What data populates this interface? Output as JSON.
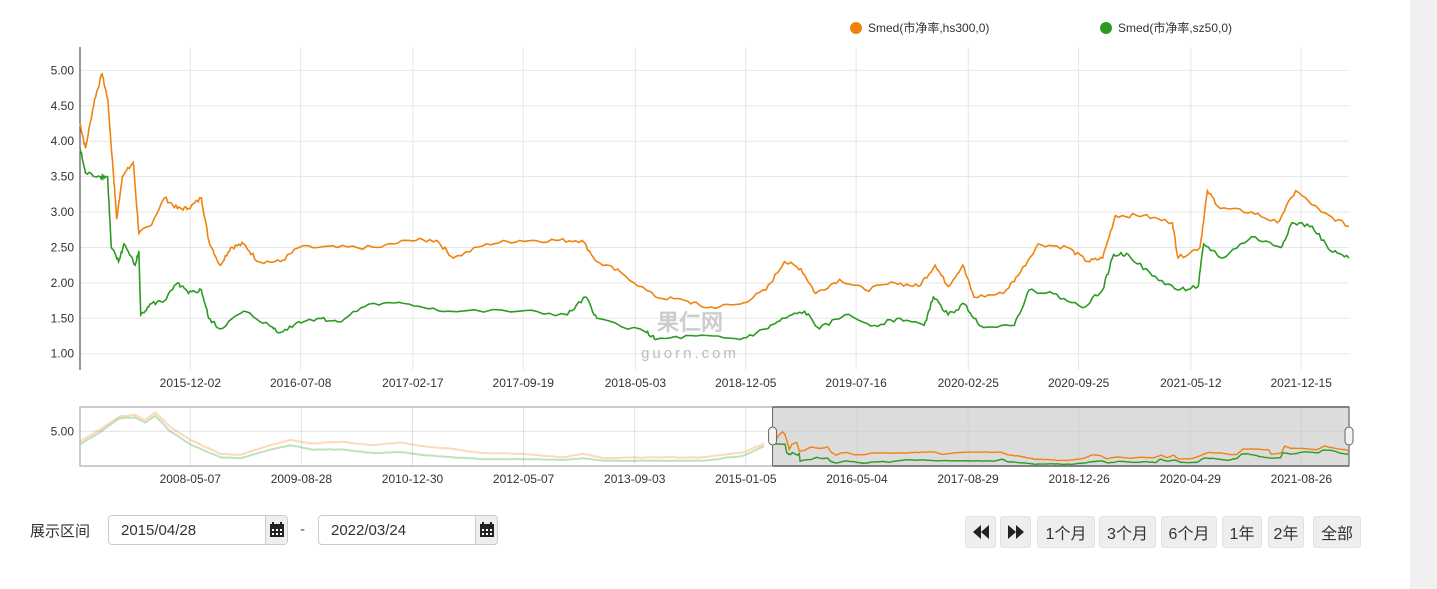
{
  "chart_data": {
    "type": "line",
    "legend": {
      "position": "top-right"
    },
    "colors": {
      "hs300": "#f0830f",
      "sz50": "#2d9b23",
      "grid": "#e6e6e6",
      "selection": "#dcdcdc"
    },
    "x_unit": "decimal year",
    "xlim": [
      2015.32,
      2022.22
    ],
    "ylim": [
      0.77,
      5.33
    ],
    "yticks": [
      "1.00",
      "1.50",
      "2.00",
      "2.50",
      "3.00",
      "3.50",
      "4.00",
      "4.50",
      "5.00"
    ],
    "xticks": [
      {
        "label": "2015-12-02",
        "x": 2015.92
      },
      {
        "label": "2016-07-08",
        "x": 2016.52
      },
      {
        "label": "2017-02-17",
        "x": 2017.13
      },
      {
        "label": "2017-09-19",
        "x": 2017.73
      },
      {
        "label": "2018-05-03",
        "x": 2018.34
      },
      {
        "label": "2018-12-05",
        "x": 2018.94
      },
      {
        "label": "2019-07-16",
        "x": 2019.54
      },
      {
        "label": "2020-02-25",
        "x": 2020.15
      },
      {
        "label": "2020-09-25",
        "x": 2020.75
      },
      {
        "label": "2021-05-12",
        "x": 2021.36
      },
      {
        "label": "2021-12-15",
        "x": 2021.96
      }
    ],
    "series": [
      {
        "name": "Smed(市净率,hs300,0)",
        "key": "hs300",
        "x": [
          2015.32,
          2015.35,
          2015.4,
          2015.44,
          2015.47,
          2015.5,
          2015.52,
          2015.55,
          2015.61,
          2015.64,
          2015.7,
          2015.78,
          2015.85,
          2015.91,
          2015.98,
          2016.02,
          2016.08,
          2016.14,
          2016.21,
          2016.29,
          2016.41,
          2016.51,
          2016.72,
          2016.94,
          2017.11,
          2017.26,
          2017.35,
          2017.53,
          2017.71,
          2017.91,
          2018.05,
          2018.13,
          2018.26,
          2018.45,
          2018.61,
          2018.73,
          2018.91,
          2019.05,
          2019.15,
          2019.24,
          2019.32,
          2019.45,
          2019.59,
          2019.75,
          2019.88,
          2019.97,
          2020.04,
          2020.12,
          2020.18,
          2020.34,
          2020.42,
          2020.53,
          2020.69,
          2020.8,
          2020.88,
          2020.95,
          2021.1,
          2021.26,
          2021.29,
          2021.41,
          2021.45,
          2021.52,
          2021.69,
          2021.83,
          2021.93,
          2022.07,
          2022.22
        ],
        "y": [
          4.25,
          3.9,
          4.6,
          4.95,
          4.6,
          3.6,
          2.9,
          3.5,
          3.7,
          2.7,
          2.8,
          3.2,
          3.05,
          3.05,
          3.2,
          2.6,
          2.25,
          2.5,
          2.55,
          2.3,
          2.3,
          2.5,
          2.5,
          2.5,
          2.6,
          2.6,
          2.35,
          2.55,
          2.6,
          2.6,
          2.6,
          2.3,
          2.15,
          1.8,
          1.75,
          1.65,
          1.7,
          1.9,
          2.3,
          2.2,
          1.85,
          2.05,
          1.9,
          2.0,
          1.95,
          2.25,
          1.95,
          2.25,
          1.8,
          1.85,
          2.1,
          2.55,
          2.5,
          2.3,
          2.35,
          2.95,
          2.95,
          2.85,
          2.35,
          2.5,
          3.3,
          3.05,
          3.0,
          2.85,
          3.3,
          3.0,
          2.8
        ]
      },
      {
        "name": "Smed(市净率,sz50,0)",
        "key": "sz50",
        "x": [
          2015.32,
          2015.35,
          2015.43,
          2015.47,
          2015.49,
          2015.53,
          2015.56,
          2015.62,
          2015.64,
          2015.65,
          2015.7,
          2015.78,
          2015.85,
          2015.91,
          2015.98,
          2016.02,
          2016.08,
          2016.21,
          2016.35,
          2016.41,
          2016.51,
          2016.62,
          2016.72,
          2016.89,
          2017.11,
          2017.32,
          2017.71,
          2017.97,
          2018.07,
          2018.13,
          2018.4,
          2018.45,
          2018.67,
          2018.91,
          2019.05,
          2019.15,
          2019.26,
          2019.34,
          2019.48,
          2019.64,
          2019.78,
          2019.91,
          2019.96,
          2020.04,
          2020.13,
          2020.21,
          2020.4,
          2020.48,
          2020.61,
          2020.77,
          2020.88,
          2020.94,
          2021.02,
          2021.15,
          2021.29,
          2021.4,
          2021.43,
          2021.53,
          2021.69,
          2021.85,
          2021.91,
          2022.02,
          2022.12,
          2022.22
        ],
        "y": [
          3.9,
          3.55,
          3.5,
          3.5,
          2.5,
          2.3,
          2.55,
          2.25,
          2.45,
          1.55,
          1.7,
          1.75,
          2.0,
          1.85,
          1.9,
          1.5,
          1.35,
          1.6,
          1.4,
          1.3,
          1.45,
          1.5,
          1.45,
          1.7,
          1.7,
          1.6,
          1.6,
          1.55,
          1.8,
          1.5,
          1.3,
          1.2,
          1.25,
          1.2,
          1.35,
          1.5,
          1.6,
          1.35,
          1.55,
          1.4,
          1.5,
          1.4,
          1.8,
          1.55,
          1.7,
          1.4,
          1.4,
          1.9,
          1.85,
          1.65,
          1.9,
          2.4,
          2.4,
          2.1,
          1.9,
          1.95,
          2.55,
          2.35,
          2.65,
          2.5,
          2.85,
          2.8,
          2.45,
          2.35
        ]
      }
    ],
    "navigator": {
      "xlim": [
        2007.03,
        2022.22
      ],
      "ylim": [
        1.0,
        7.8
      ],
      "yticks": [
        "5.00"
      ],
      "selection": [
        2015.32,
        2022.22
      ],
      "xticks": [
        {
          "label": "2008-05-07",
          "x": 2008.35
        },
        {
          "label": "2009-08-28",
          "x": 2009.68
        },
        {
          "label": "2010-12-30",
          "x": 2011.01
        },
        {
          "label": "2012-05-07",
          "x": 2012.34
        },
        {
          "label": "2013-09-03",
          "x": 2013.67
        },
        {
          "label": "2015-01-05",
          "x": 2015.0
        },
        {
          "label": "2016-05-04",
          "x": 2016.33
        },
        {
          "label": "2017-08-29",
          "x": 2017.66
        },
        {
          "label": "2018-12-26",
          "x": 2018.99
        },
        {
          "label": "2020-04-29",
          "x": 2020.32
        },
        {
          "label": "2021-08-26",
          "x": 2021.65
        }
      ],
      "history_x": [
        2007.03,
        2007.27,
        2007.5,
        2007.69,
        2007.81,
        2007.93,
        2008.11,
        2008.35,
        2008.71,
        2008.95,
        2009.31,
        2009.55,
        2009.8,
        2010.16,
        2010.52,
        2010.88,
        2011.12,
        2011.48,
        2011.84,
        2012.33,
        2012.81,
        2013.05,
        2013.3,
        2013.9,
        2014.5,
        2014.98,
        2015.22
      ],
      "history_hs300": [
        3.8,
        5.2,
        6.7,
        6.9,
        6.3,
        7.2,
        5.5,
        4.0,
        2.4,
        2.3,
        3.4,
        4.0,
        3.6,
        3.8,
        3.4,
        3.7,
        3.3,
        3.0,
        2.5,
        2.4,
        2.0,
        2.4,
        1.9,
        2.0,
        2.0,
        2.6,
        3.6
      ],
      "history_sz50": [
        3.5,
        4.9,
        6.5,
        6.6,
        6.0,
        6.8,
        5.0,
        3.5,
        2.0,
        1.9,
        2.9,
        3.4,
        2.9,
        2.9,
        2.5,
        2.6,
        2.3,
        2.0,
        1.8,
        1.8,
        1.7,
        1.9,
        1.6,
        1.6,
        1.6,
        2.2,
        3.3
      ]
    },
    "watermark": "果仁网 guorn.com"
  },
  "controls": {
    "range_label": "展示区间",
    "start_date": "2015/04/28",
    "end_date": "2022/03/24",
    "separator": "-",
    "buttons": [
      "1个月",
      "3个月",
      "6个月",
      "1年",
      "2年",
      "全部"
    ]
  }
}
